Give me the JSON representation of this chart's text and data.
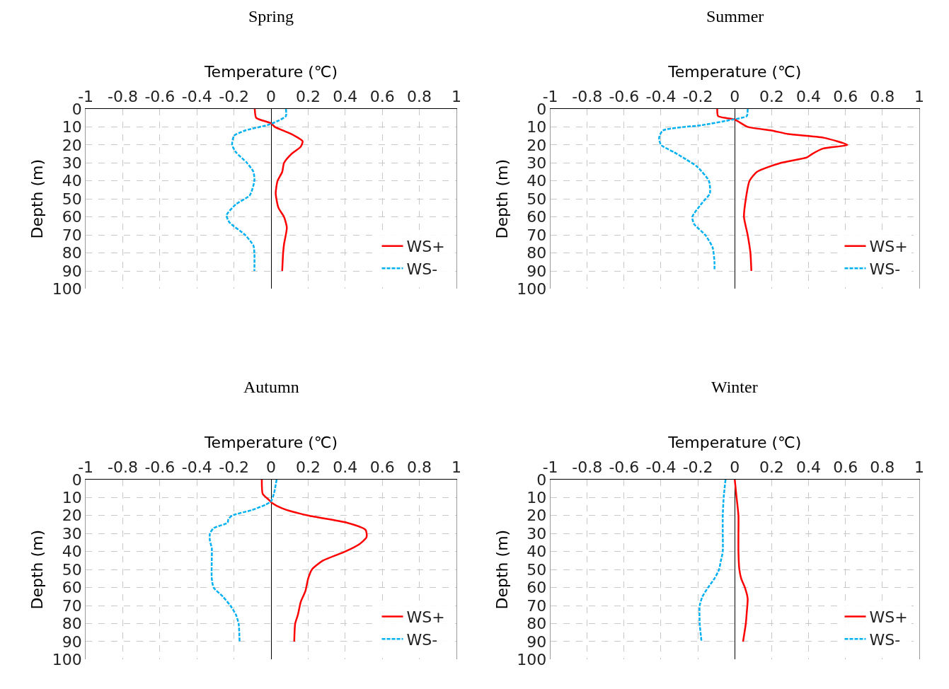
{
  "chart_data": [
    {
      "type": "line",
      "title": "Spring",
      "xlabel": "Temperature (℃)",
      "ylabel": "Depth (m)",
      "xlim": [
        -1,
        1
      ],
      "xticks": [
        -1,
        -0.8,
        -0.6,
        -0.4,
        -0.2,
        0,
        0.2,
        0.4,
        0.6,
        0.8,
        1
      ],
      "ylim": [
        100,
        0
      ],
      "yticks": [
        0,
        10,
        20,
        30,
        40,
        50,
        60,
        70,
        80,
        90,
        100
      ],
      "grid": true,
      "legend": "bottom right",
      "marker": "none",
      "series": [
        {
          "name": "WS+",
          "color": "#ff0000",
          "line_style": "solid",
          "x": [
            -0.088,
            -0.08,
            0,
            0.02,
            0.11,
            0.17,
            0.16,
            0.11,
            0.07,
            0.06,
            0.035,
            0.025,
            0.04,
            0.07,
            0.085,
            0.07,
            0.065,
            0.06
          ],
          "values": [
            0,
            5,
            8,
            10,
            14,
            18,
            21,
            25,
            30,
            35,
            40,
            47,
            55,
            60,
            66,
            75,
            80,
            90
          ]
        },
        {
          "name": "WS-",
          "color": "#00b0f0",
          "line_style": "dashed",
          "x": [
            0.08,
            0.08,
            0.03,
            -0.02,
            -0.14,
            -0.2,
            -0.21,
            -0.19,
            -0.13,
            -0.095,
            -0.09,
            -0.115,
            -0.19,
            -0.24,
            -0.225,
            -0.14,
            -0.095,
            -0.09,
            -0.09
          ],
          "values": [
            0,
            4,
            7,
            9,
            12,
            15,
            20,
            24,
            30,
            35,
            40,
            48,
            53,
            59,
            63,
            70,
            76,
            80,
            90
          ]
        }
      ]
    },
    {
      "type": "line",
      "title": "Summer",
      "xlabel": "Temperature (℃)",
      "ylabel": "Depth (m)",
      "xlim": [
        -1,
        1
      ],
      "xticks": [
        -1,
        -0.8,
        -0.6,
        -0.4,
        -0.2,
        0,
        0.2,
        0.4,
        0.6,
        0.8,
        1
      ],
      "ylim": [
        100,
        0
      ],
      "yticks": [
        0,
        10,
        20,
        30,
        40,
        50,
        60,
        70,
        80,
        90,
        100
      ],
      "grid": true,
      "legend": "bottom right",
      "marker": "none",
      "series": [
        {
          "name": "WS+",
          "color": "#ff0000",
          "line_style": "solid",
          "x": [
            -0.095,
            -0.09,
            0,
            0.07,
            0.2,
            0.29,
            0.48,
            0.61,
            0.48,
            0.42,
            0.39,
            0.25,
            0.12,
            0.08,
            0.06,
            0.05,
            0.07,
            0.085,
            0.09
          ],
          "values": [
            0,
            4,
            6,
            10,
            12,
            14,
            16,
            20,
            22,
            25,
            27,
            30,
            35,
            40,
            50,
            60,
            70,
            80,
            90
          ]
        },
        {
          "name": "WS-",
          "color": "#00b0f0",
          "line_style": "dashed",
          "x": [
            0.07,
            0.065,
            -0.015,
            -0.175,
            -0.39,
            -0.41,
            -0.4,
            -0.33,
            -0.265,
            -0.205,
            -0.14,
            -0.135,
            -0.175,
            -0.23,
            -0.22,
            -0.16,
            -0.12,
            -0.11,
            -0.11
          ],
          "values": [
            0,
            4,
            6,
            9,
            12,
            16,
            20,
            24,
            28,
            32,
            40,
            47,
            52,
            60,
            64,
            70,
            77,
            85,
            90
          ]
        }
      ]
    },
    {
      "type": "line",
      "title": "Autumn",
      "xlabel": "Temperature (℃)",
      "ylabel": "Depth (m)",
      "xlim": [
        -1,
        1
      ],
      "xticks": [
        -1,
        -0.8,
        -0.6,
        -0.4,
        -0.2,
        0,
        0.2,
        0.4,
        0.6,
        0.8,
        1
      ],
      "ylim": [
        100,
        0
      ],
      "yticks": [
        0,
        10,
        20,
        30,
        40,
        50,
        60,
        70,
        80,
        90,
        100
      ],
      "grid": true,
      "legend": "bottom right",
      "marker": "none",
      "series": [
        {
          "name": "WS+",
          "color": "#ff0000",
          "line_style": "solid",
          "x": [
            -0.05,
            -0.045,
            -0.015,
            0.005,
            0.06,
            0.2,
            0.41,
            0.51,
            0.515,
            0.475,
            0.4,
            0.28,
            0.22,
            0.2,
            0.185,
            0.16,
            0.145,
            0.13,
            0.125
          ],
          "values": [
            0,
            8,
            11,
            13,
            16,
            20,
            24,
            28,
            32,
            36,
            40,
            45,
            50,
            55,
            62,
            68,
            75,
            80,
            90
          ]
        },
        {
          "name": "WS-",
          "color": "#00b0f0",
          "line_style": "dashed",
          "x": [
            0.03,
            0.015,
            0,
            -0.03,
            -0.105,
            -0.21,
            -0.23,
            -0.235,
            -0.31,
            -0.33,
            -0.33,
            -0.32,
            -0.32,
            -0.32,
            -0.31,
            -0.26,
            -0.22,
            -0.19,
            -0.175,
            -0.17
          ],
          "values": [
            0,
            8,
            12,
            14,
            17,
            20,
            22,
            24,
            27,
            30,
            34,
            38,
            45,
            55,
            60,
            65,
            70,
            75,
            80,
            90
          ]
        }
      ]
    },
    {
      "type": "line",
      "title": "Winter",
      "xlabel": "Temperature (℃)",
      "ylabel": "Depth (m)",
      "xlim": [
        -1,
        1
      ],
      "xticks": [
        -1,
        -0.8,
        -0.6,
        -0.4,
        -0.2,
        0,
        0.2,
        0.4,
        0.6,
        0.8,
        1
      ],
      "ylim": [
        100,
        0
      ],
      "yticks": [
        0,
        10,
        20,
        30,
        40,
        50,
        60,
        70,
        80,
        90,
        100
      ],
      "grid": true,
      "legend": "bottom right",
      "marker": "none",
      "series": [
        {
          "name": "WS+",
          "color": "#ff0000",
          "line_style": "solid",
          "x": [
            0,
            0.01,
            0.02,
            0.02,
            0.02,
            0.025,
            0.035,
            0.055,
            0.07,
            0.065,
            0.06,
            0.045
          ],
          "values": [
            0,
            10,
            20,
            30,
            40,
            50,
            55,
            60,
            66,
            74,
            80,
            90
          ]
        },
        {
          "name": "WS-",
          "color": "#00b0f0",
          "line_style": "dashed",
          "x": [
            -0.05,
            -0.06,
            -0.065,
            -0.065,
            -0.065,
            -0.075,
            -0.085,
            -0.11,
            -0.145,
            -0.175,
            -0.19,
            -0.19,
            -0.18
          ],
          "values": [
            0,
            10,
            20,
            30,
            40,
            45,
            50,
            55,
            60,
            65,
            70,
            80,
            90
          ]
        }
      ]
    }
  ]
}
